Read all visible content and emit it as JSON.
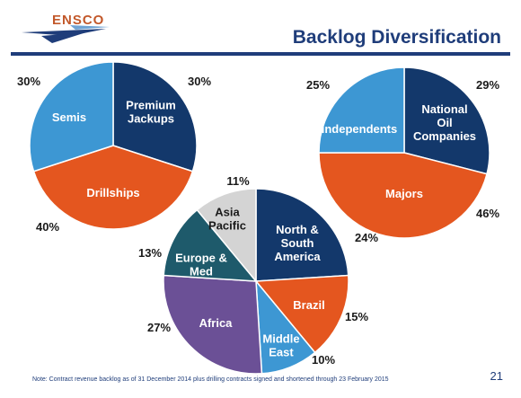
{
  "header": {
    "logo_text": "ENSCO",
    "title": "Backlog Diversification"
  },
  "colors": {
    "navy": "#13386b",
    "orange": "#e4561f",
    "lightblue": "#3d97d3",
    "gray": "#d4d4d4",
    "purple": "#6b5096",
    "teal": "#1e5a6b",
    "rule": "#1f3d7a"
  },
  "chart_data": [
    {
      "type": "pie",
      "title": "",
      "slices": [
        {
          "label": "Premium Jackups",
          "value": 30,
          "pct_label": "30%",
          "color": "#13386b"
        },
        {
          "label": "Drillships",
          "value": 40,
          "pct_label": "40%",
          "color": "#e4561f"
        },
        {
          "label": "Semis",
          "value": 30,
          "pct_label": "30%",
          "color": "#3d97d3"
        }
      ]
    },
    {
      "type": "pie",
      "title": "",
      "slices": [
        {
          "label": "National Oil Companies",
          "value": 29,
          "pct_label": "29%",
          "color": "#13386b"
        },
        {
          "label": "Majors",
          "value": 46,
          "pct_label": "46%",
          "color": "#e4561f"
        },
        {
          "label": "Independents",
          "value": 25,
          "pct_label": "25%",
          "color": "#3d97d3"
        }
      ]
    },
    {
      "type": "pie",
      "title": "",
      "slices": [
        {
          "label": "North & South America",
          "value": 24,
          "pct_label": "24%",
          "color": "#13386b"
        },
        {
          "label": "Brazil",
          "value": 15,
          "pct_label": "15%",
          "color": "#e4561f"
        },
        {
          "label": "Middle East",
          "value": 10,
          "pct_label": "10%",
          "color": "#3d97d3"
        },
        {
          "label": "Africa",
          "value": 27,
          "pct_label": "27%",
          "color": "#6b5096"
        },
        {
          "label": "Europe & Med",
          "value": 13,
          "pct_label": "13%",
          "color": "#1e5a6b"
        },
        {
          "label": "Asia Pacific",
          "value": 11,
          "pct_label": "11%",
          "color": "#d4d4d4"
        }
      ]
    }
  ],
  "footnote": "Note: Contract revenue backlog as of 31 December 2014 plus drilling contracts signed and shortened through 23 February 2015",
  "page_number": "21"
}
